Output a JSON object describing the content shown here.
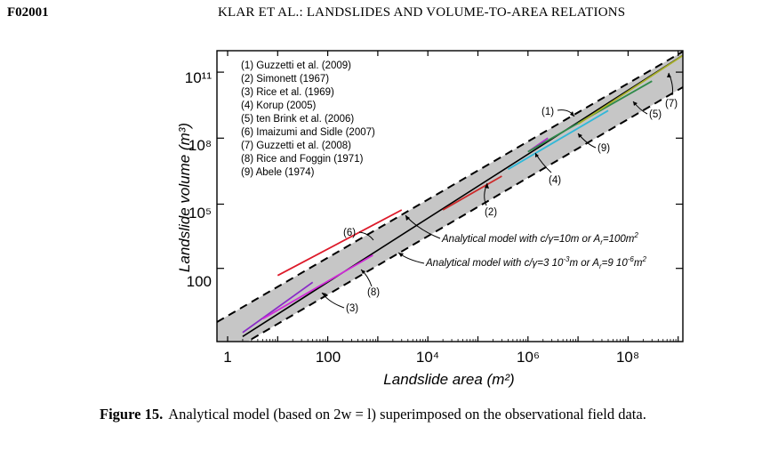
{
  "header": {
    "page_id": "F02001",
    "running_head": "KLAR ET AL.: LANDSLIDES AND VOLUME-TO-AREA RELATIONS"
  },
  "caption": {
    "label": "Figure 15.",
    "text": "Analytical model (based on 2w = l) superimposed on the observational field data."
  },
  "chart_data": {
    "type": "line",
    "xlabel": "Landslide area (m²)",
    "ylabel": "Landslide volume (m³)",
    "xscale": "log",
    "yscale": "log",
    "xlim": [
      1,
      3000000000.0
    ],
    "ylim": [
      0.15,
      2000000000000.0
    ],
    "x_tick_labels": [
      "1",
      "100",
      "10⁴",
      "10⁶",
      "10⁸"
    ],
    "y_tick_labels": [
      "100",
      "10⁵",
      "10⁸",
      "10¹¹"
    ],
    "legend_position": "top-left",
    "legend": [
      "(1) Guzzetti et al. (2009)",
      "(2) Simonett (1967)",
      "(3) Rice et al. (1969)",
      "(4) Korup (2005)",
      "(5) ten Brink et al. (2006)",
      "(6) Imaizumi and Sidle (2007)",
      "(7) Guzzetti et al. (2008)",
      "(8) Rice and Foggin (1971)",
      "(9) Abele (1974)"
    ],
    "series": [
      {
        "name": "(1) Guzzetti et al. (2009)",
        "color": "#000000",
        "x": [
          2,
          2500000000.0
        ],
        "y": [
          0.2,
          1500000000000.0
        ]
      },
      {
        "name": "(2) Simonett (1967)",
        "color": "#cc2a2a",
        "x": [
          20000.0,
          300000.0
        ],
        "y": [
          80000.0,
          2500000.0
        ]
      },
      {
        "name": "(3) Rice et al. (1969)",
        "color": "#8a2ac8",
        "x": [
          2,
          50
        ],
        "y": [
          0.3,
          50
        ]
      },
      {
        "name": "(4) Korup (2005)",
        "color": "#b030c8",
        "x": [
          1000000.0,
          2500000.0
        ],
        "y": [
          30000000.0,
          120000000.0
        ]
      },
      {
        "name": "(5) ten Brink et al. (2006)",
        "color": "#2f8a4a",
        "x": [
          1000000.0,
          300000000.0
        ],
        "y": [
          30000000.0,
          40000000000.0
        ]
      },
      {
        "name": "(6) Imaizumi and Sidle (2007)",
        "color": "#dd1a2a",
        "x": [
          10,
          3000
        ],
        "y": [
          100,
          80000.0
        ]
      },
      {
        "name": "(7) Guzzetti et al. (2008)",
        "color": "#a8b02a",
        "x": [
          10000000.0,
          2500000000.0
        ],
        "y": [
          500000000.0,
          1500000000000.0
        ]
      },
      {
        "name": "(8) Rice and Foggin (1971)",
        "color": "#d02ad8",
        "x": [
          5,
          800
        ],
        "y": [
          1.2,
          800
        ]
      },
      {
        "name": "(9) Abele (1974)",
        "color": "#30b8d8",
        "x": [
          400000.0,
          40000000.0
        ],
        "y": [
          5000000.0,
          2000000000.0
        ]
      }
    ],
    "annotations": [
      {
        "label": "(1)"
      },
      {
        "label": "(2)"
      },
      {
        "label": "(3)"
      },
      {
        "label": "(4)"
      },
      {
        "label": "(5)"
      },
      {
        "label": "(6)"
      },
      {
        "label": "(7)"
      },
      {
        "label": "(8)"
      },
      {
        "label": "(9)"
      }
    ],
    "model_upper": {
      "label": "Analytical model with c/γ=10m or A",
      "sub": "r",
      "tail": "=100m",
      "sup": "2"
    },
    "model_lower": {
      "label": "Analytical model with c/γ=3 10",
      "sup1": "-3",
      "mid": "m or A",
      "sub": "r",
      "tail": "=9 10",
      "sup2": "-6",
      "tail2": "m",
      "sup3": "2"
    }
  }
}
